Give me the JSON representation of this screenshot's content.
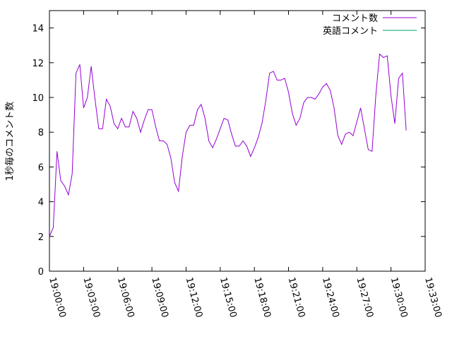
{
  "chart_data": {
    "type": "line",
    "title": "",
    "xlabel": "",
    "ylabel": "1秒毎のコメント数",
    "xlim": [
      "19:00:00",
      "19:33:00"
    ],
    "ylim": [
      0,
      15
    ],
    "yticks": [
      0,
      2,
      4,
      6,
      8,
      10,
      12,
      14
    ],
    "xticks": [
      "19:00:00",
      "19:03:00",
      "19:06:00",
      "19:09:00",
      "19:12:00",
      "19:15:00",
      "19:18:00",
      "19:21:00",
      "19:24:00",
      "19:27:00",
      "19:30:00",
      "19:33:00"
    ],
    "grid": false,
    "legend": "top-right",
    "series": [
      {
        "name": "コメント数",
        "color": "#9400d3",
        "x": [
          "19:00:00",
          "19:00:20",
          "19:00:40",
          "19:01:00",
          "19:01:20",
          "19:01:40",
          "19:02:00",
          "19:02:20",
          "19:02:40",
          "19:03:00",
          "19:03:20",
          "19:03:40",
          "19:04:00",
          "19:04:20",
          "19:04:40",
          "19:05:00",
          "19:05:20",
          "19:05:40",
          "19:06:00",
          "19:06:20",
          "19:06:40",
          "19:07:00",
          "19:07:20",
          "19:07:40",
          "19:08:00",
          "19:08:20",
          "19:08:40",
          "19:09:00",
          "19:09:20",
          "19:09:40",
          "19:10:00",
          "19:10:20",
          "19:10:40",
          "19:11:00",
          "19:11:20",
          "19:11:40",
          "19:12:00",
          "19:12:20",
          "19:12:40",
          "19:13:00",
          "19:13:20",
          "19:13:40",
          "19:14:00",
          "19:14:20",
          "19:14:40",
          "19:15:00",
          "19:15:20",
          "19:15:40",
          "19:16:00",
          "19:16:20",
          "19:16:40",
          "19:17:00",
          "19:17:20",
          "19:17:40",
          "19:18:00",
          "19:18:20",
          "19:18:40",
          "19:19:00",
          "19:19:20",
          "19:19:40",
          "19:20:00",
          "19:20:20",
          "19:20:40",
          "19:21:00",
          "19:21:20",
          "19:21:40",
          "19:22:00",
          "19:22:20",
          "19:22:40",
          "19:23:00",
          "19:23:20",
          "19:23:40",
          "19:24:00",
          "19:24:20",
          "19:24:40",
          "19:25:00",
          "19:25:20",
          "19:25:40",
          "19:26:00",
          "19:26:20",
          "19:26:40",
          "19:27:00",
          "19:27:20",
          "19:27:40",
          "19:28:00",
          "19:28:20",
          "19:28:40",
          "19:29:00",
          "19:29:20",
          "19:29:40",
          "19:30:00",
          "19:30:20",
          "19:30:40",
          "19:31:00",
          "19:31:20"
        ],
        "values": [
          2.0,
          2.5,
          6.9,
          5.2,
          4.9,
          4.4,
          5.6,
          11.4,
          11.9,
          9.4,
          10.0,
          11.8,
          9.9,
          8.2,
          8.2,
          9.9,
          9.5,
          8.5,
          8.2,
          8.8,
          8.3,
          8.3,
          9.2,
          8.8,
          8.0,
          8.7,
          9.3,
          9.3,
          8.3,
          7.5,
          7.5,
          7.3,
          6.5,
          5.1,
          4.6,
          6.6,
          8.0,
          8.4,
          8.4,
          9.3,
          9.6,
          8.8,
          7.5,
          7.1,
          7.6,
          8.2,
          8.8,
          8.7,
          7.9,
          7.2,
          7.2,
          7.5,
          7.2,
          6.6,
          7.1,
          7.7,
          8.5,
          9.8,
          11.4,
          11.5,
          11.0,
          11.0,
          11.1,
          10.3,
          9.1,
          8.4,
          8.8,
          9.7,
          10.0,
          10.0,
          9.9,
          10.2,
          10.6,
          10.8,
          10.4,
          9.4,
          7.8,
          7.3,
          7.9,
          8.0,
          7.8,
          8.6,
          9.4,
          8.2,
          7.0,
          6.9,
          10.1,
          12.5,
          12.3,
          12.4,
          10.1,
          8.5,
          11.1,
          11.4,
          8.1
        ]
      },
      {
        "name": "英語コメント",
        "color": "#009e73",
        "x": [],
        "values": []
      }
    ]
  }
}
